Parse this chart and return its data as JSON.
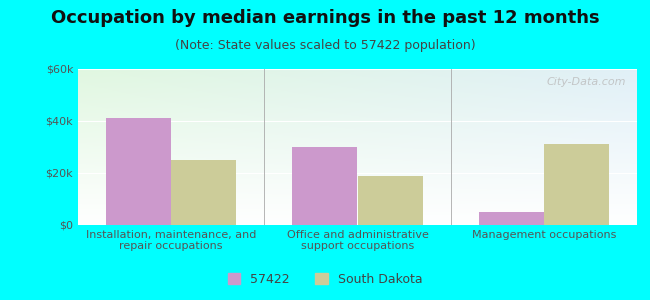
{
  "title": "Occupation by median earnings in the past 12 months",
  "subtitle": "(Note: State values scaled to 57422 population)",
  "categories": [
    "Installation, maintenance, and\nrepair occupations",
    "Office and administrative\nsupport occupations",
    "Management occupations"
  ],
  "values_57422": [
    41000,
    30000,
    5000
  ],
  "values_sd": [
    25000,
    19000,
    31000
  ],
  "color_57422": "#cc99cc",
  "color_sd": "#cccc99",
  "ylim": [
    0,
    60000
  ],
  "yticks": [
    0,
    20000,
    40000,
    60000
  ],
  "ytick_labels": [
    "$0",
    "$20k",
    "$40k",
    "$60k"
  ],
  "background_color": "#00ffff",
  "bar_width": 0.35,
  "legend_labels": [
    "57422",
    "South Dakota"
  ],
  "watermark": "City-Data.com",
  "title_fontsize": 13,
  "subtitle_fontsize": 9,
  "tick_fontsize": 8,
  "xlabel_fontsize": 8
}
